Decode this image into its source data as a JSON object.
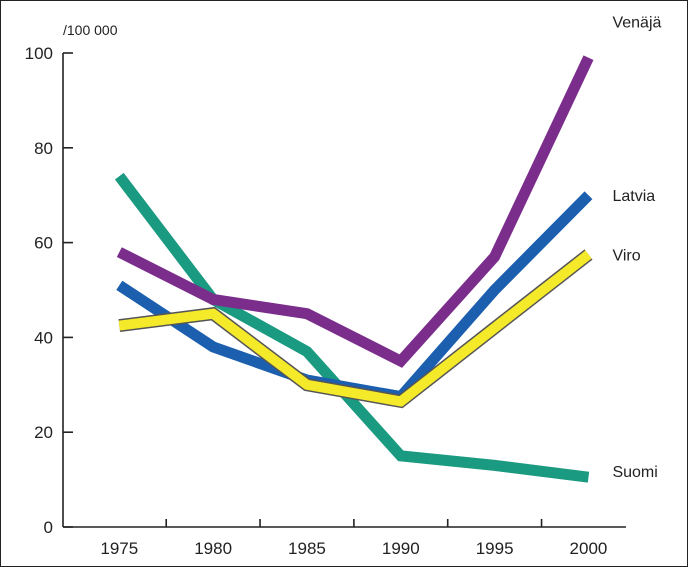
{
  "chart_data": {
    "type": "line",
    "unit_label": "/100 000",
    "x": [
      1975,
      1980,
      1985,
      1990,
      1995,
      2000
    ],
    "xlim": [
      1972,
      2002
    ],
    "ylim": [
      0,
      100
    ],
    "yticks": [
      0,
      20,
      40,
      60,
      80,
      100
    ],
    "xticks": [
      1975,
      1980,
      1985,
      1990,
      1995,
      2000
    ],
    "grid": false,
    "legend": "inline labels at line ends (right)",
    "series": [
      {
        "name": "Suomi",
        "color": "#1a9a80",
        "values": [
          74,
          48,
          37,
          15,
          13,
          10.5
        ]
      },
      {
        "name": "Venäjä",
        "color": "#7b2d8b",
        "values": [
          58,
          48,
          45,
          35,
          57,
          99
        ]
      },
      {
        "name": "Latvia",
        "color": "#1b5fae",
        "values": [
          51,
          38,
          31,
          27.5,
          50,
          70
        ]
      },
      {
        "name": "Viro",
        "color": "#f5ea2a",
        "outline": "#555555",
        "values": [
          42.5,
          45,
          30,
          26.5,
          42,
          57.5
        ]
      }
    ]
  }
}
